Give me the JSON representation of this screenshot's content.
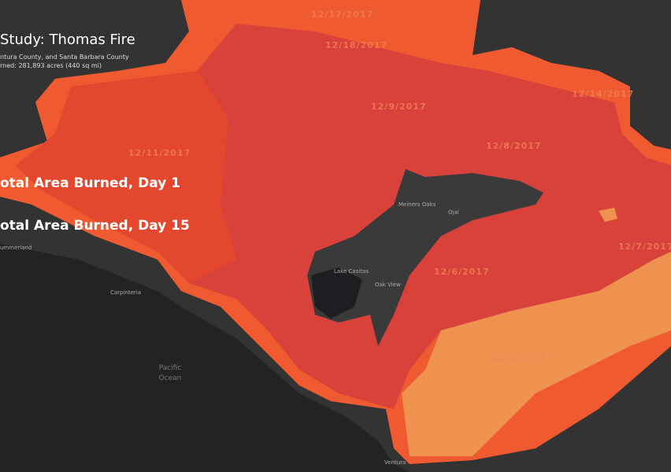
{
  "header": {
    "title": "Study: Thomas Fire",
    "subtitle": "ntura County, and Santa Barbara County",
    "acres": "rned: 281,893 acres (440 sq mi)"
  },
  "legend": {
    "items": [
      "otal Area Burned, Day 1",
      "otal Area Burned, Day 15"
    ]
  },
  "fire_labels": [
    "12/17/2017",
    "12/18/2017",
    "12/9/2017",
    "12/14/2017",
    "12/11/2017",
    "12/8/2017",
    "12/7/2017",
    "12/6/2017",
    "12/5/2017"
  ],
  "places": [
    "Meiners Oaks",
    "Ojai",
    "Lake Casitas",
    "Oak View",
    "ummerland",
    "Carpinteria",
    "Pacific",
    "Ocean",
    "Ventura"
  ]
}
